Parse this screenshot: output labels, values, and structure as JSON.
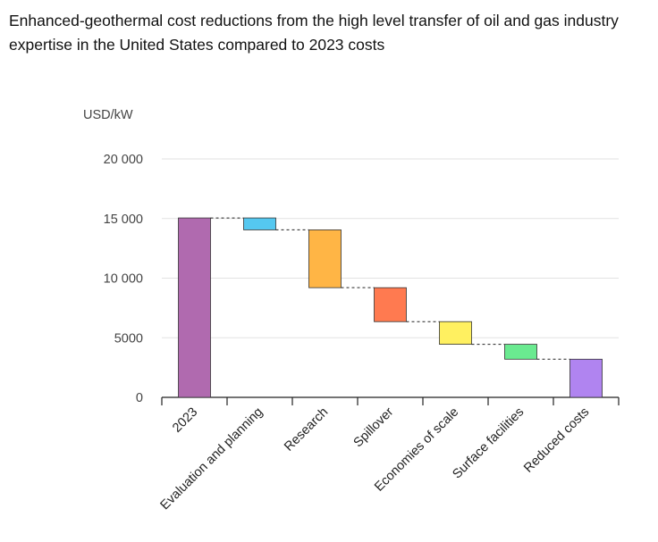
{
  "title": "Enhanced-geothermal cost reductions from the high level transfer of oil and gas industry expertise in the United States compared to 2023 costs",
  "chart_data": {
    "type": "bar",
    "subtype": "waterfall",
    "title": "Enhanced-geothermal cost reductions from the high level transfer of oil and gas industry expertise in the United States compared to 2023 costs",
    "ylabel": "USD/kW",
    "xlabel": "",
    "ylim": [
      0,
      20000
    ],
    "yticks": [
      0,
      5000,
      10000,
      15000,
      20000
    ],
    "ytick_labels": [
      "0",
      "5000",
      "10 000",
      "15 000",
      "20 000"
    ],
    "grid": true,
    "categories": [
      "2023",
      "Evaluation and planning",
      "Research",
      "Spillover",
      "Economies of scale",
      "Surface facilities",
      "Reduced costs"
    ],
    "bars": [
      {
        "category": "2023",
        "kind": "total",
        "start": 0,
        "end": 15050,
        "color": "#b06aaf"
      },
      {
        "category": "Evaluation and planning",
        "kind": "decrease",
        "start": 15050,
        "end": 14050,
        "color": "#55c8f0"
      },
      {
        "category": "Research",
        "kind": "decrease",
        "start": 14050,
        "end": 9200,
        "color": "#ffb545"
      },
      {
        "category": "Spillover",
        "kind": "decrease",
        "start": 9200,
        "end": 6350,
        "color": "#ff7a50"
      },
      {
        "category": "Economies of scale",
        "kind": "decrease",
        "start": 6350,
        "end": 4450,
        "color": "#fff060"
      },
      {
        "category": "Surface facilities",
        "kind": "decrease",
        "start": 4450,
        "end": 3200,
        "color": "#6aea90"
      },
      {
        "category": "Reduced costs",
        "kind": "total",
        "start": 0,
        "end": 3200,
        "color": "#b084f0"
      }
    ],
    "connectors": "dashed"
  }
}
